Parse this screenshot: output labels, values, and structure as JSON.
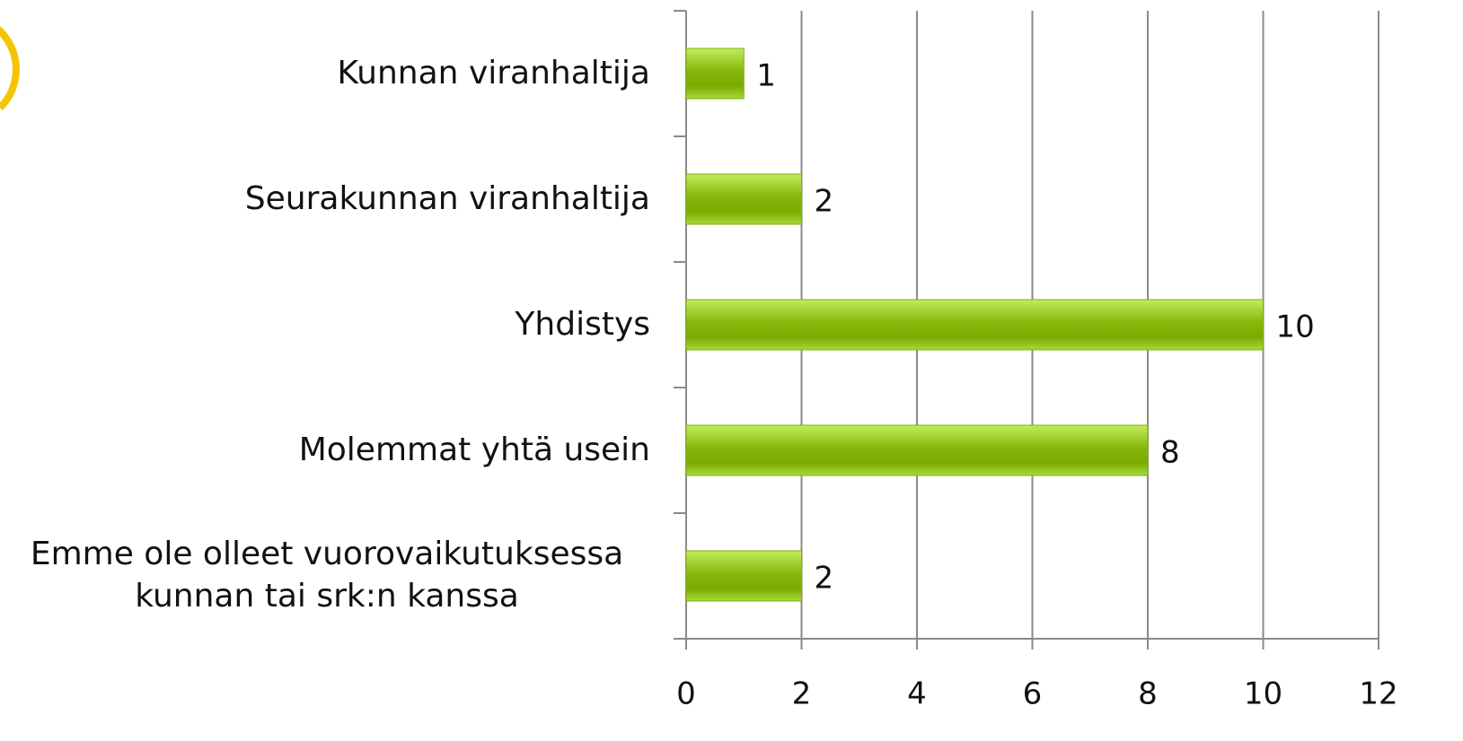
{
  "chart_data": {
    "type": "bar",
    "orientation": "horizontal",
    "categories": [
      "Kunnan viranhaltija",
      "Seurakunnan viranhaltija",
      "Yhdistys",
      "Molemmat yhtä usein",
      "Emme ole olleet vuorovaikutuksessa kunnan tai srk:n kanssa"
    ],
    "values": [
      1,
      2,
      10,
      8,
      2
    ],
    "color": "#7fb10a",
    "xlim": [
      0,
      12
    ],
    "xticks": [
      0,
      2,
      4,
      6,
      8,
      10,
      12
    ],
    "grid": true
  }
}
